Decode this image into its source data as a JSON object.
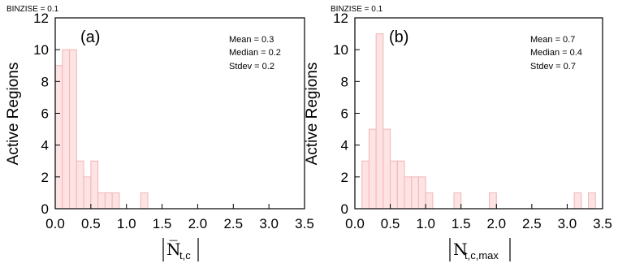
{
  "chart_data": [
    {
      "type": "bar",
      "panel_label": "(a)",
      "binsize_note": "BINZISE = 0.1",
      "ylabel": "Active Regions",
      "xlabel": {
        "symbol": "N̅",
        "subscript": "t,c"
      },
      "stats": [
        "Mean = 0.3",
        "Median = 0.2",
        "Stdev = 0.2"
      ],
      "xlim": [
        0,
        3.5
      ],
      "ylim": [
        0,
        12
      ],
      "xticks": [
        "0.0",
        "0.5",
        "1.0",
        "1.5",
        "2.0",
        "2.5",
        "3.0",
        "3.5"
      ],
      "yticks": [
        "0",
        "2",
        "4",
        "6",
        "8",
        "10",
        "12"
      ],
      "bin_width": 0.1,
      "bins": [
        {
          "x": 0.0,
          "value": 9
        },
        {
          "x": 0.1,
          "value": 10
        },
        {
          "x": 0.2,
          "value": 10
        },
        {
          "x": 0.3,
          "value": 3
        },
        {
          "x": 0.4,
          "value": 2
        },
        {
          "x": 0.5,
          "value": 3
        },
        {
          "x": 0.6,
          "value": 1
        },
        {
          "x": 0.7,
          "value": 1
        },
        {
          "x": 0.8,
          "value": 1
        },
        {
          "x": 1.2,
          "value": 1
        }
      ]
    },
    {
      "type": "bar",
      "panel_label": "(b)",
      "binsize_note": "BINZISE = 0.1",
      "ylabel": "",
      "xlabel": {
        "symbol": "N",
        "subscript": "t,c,max"
      },
      "stats": [
        "Mean = 0.7",
        "Median = 0.4",
        "Stdev = 0.7"
      ],
      "xlim": [
        0,
        3.5
      ],
      "ylim": [
        0,
        12
      ],
      "xticks": [
        "0.0",
        "0.5",
        "1.0",
        "1.5",
        "2.0",
        "2.5",
        "3.0",
        "3.5"
      ],
      "yticks": [
        "0",
        "2",
        "4",
        "6",
        "8",
        "10",
        "12"
      ],
      "bin_width": 0.1,
      "bins": [
        {
          "x": 0.1,
          "value": 3
        },
        {
          "x": 0.2,
          "value": 5
        },
        {
          "x": 0.3,
          "value": 11
        },
        {
          "x": 0.4,
          "value": 5
        },
        {
          "x": 0.5,
          "value": 3
        },
        {
          "x": 0.6,
          "value": 3
        },
        {
          "x": 0.7,
          "value": 2
        },
        {
          "x": 0.8,
          "value": 2
        },
        {
          "x": 0.9,
          "value": 2
        },
        {
          "x": 1.0,
          "value": 1
        },
        {
          "x": 1.4,
          "value": 1
        },
        {
          "x": 1.9,
          "value": 1
        },
        {
          "x": 3.1,
          "value": 1
        },
        {
          "x": 3.3,
          "value": 1
        }
      ]
    }
  ],
  "colors": {
    "bar_fill": "#fde3e3",
    "bar_stroke": "#f2b5b5",
    "axis": "#000000"
  }
}
